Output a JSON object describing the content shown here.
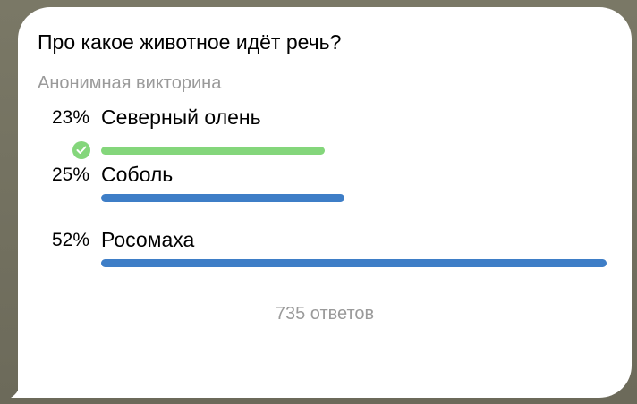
{
  "poll": {
    "question": "Про какое животное идёт речь?",
    "type_label": "Анонимная викторина",
    "options": [
      {
        "percent_label": "23%",
        "percent": 23,
        "text": "Северный олень",
        "correct": true,
        "color": "#84d67b"
      },
      {
        "percent_label": "25%",
        "percent": 25,
        "text": "Соболь",
        "correct": false,
        "color": "#3e7ec7"
      },
      {
        "percent_label": "52%",
        "percent": 52,
        "text": "Росомаха",
        "correct": false,
        "color": "#3e7ec7"
      }
    ],
    "total_votes": "735 ответов"
  },
  "colors": {
    "background": "#6f6c5c",
    "bubble": "#ffffff",
    "correct": "#84d67b",
    "bar": "#3e7ec7"
  }
}
